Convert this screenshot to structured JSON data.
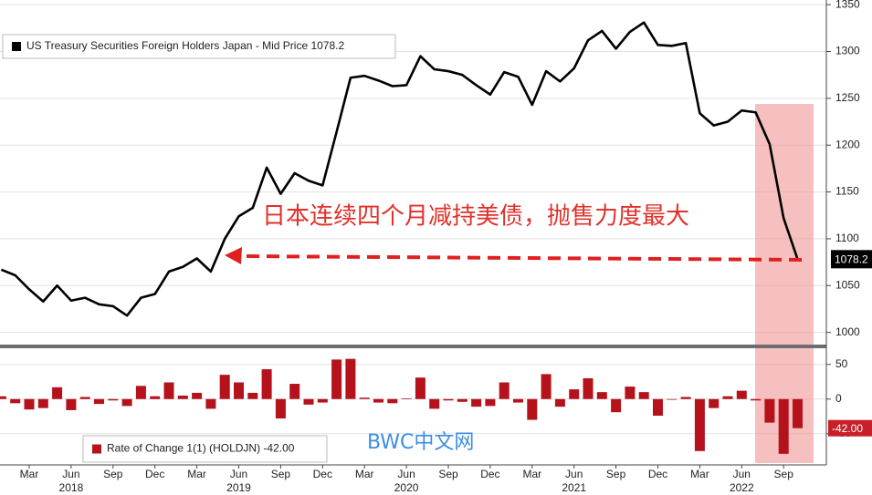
{
  "chart_data": [
    {
      "type": "line",
      "series": [
        {
          "name": "US Treasury Securities Foreign Holders Japan - Mid Price 1078.2",
          "color": "#000000",
          "values": [
            1067,
            1061,
            1046,
            1033,
            1050,
            1034,
            1037,
            1030,
            1028,
            1018,
            1037,
            1041,
            1065,
            1070,
            1079,
            1065,
            1100,
            1124,
            1133,
            1176,
            1148,
            1170,
            1162,
            1157,
            1214,
            1272,
            1274,
            1269,
            1263,
            1264,
            1295,
            1281,
            1279,
            1275,
            1264,
            1254,
            1278,
            1273,
            1243,
            1279,
            1268,
            1282,
            1312,
            1322,
            1303,
            1321,
            1331,
            1307,
            1306,
            1309,
            1234,
            1221,
            1225,
            1237,
            1235,
            1201,
            1122,
            1078.2
          ]
        }
      ],
      "ylim": [
        987,
        1355
      ],
      "yticks": [
        1000,
        1050,
        1100,
        1150,
        1200,
        1250,
        1300,
        1350
      ],
      "grid": true,
      "annotation": "日本连续四个月减持美债，抛售力度最大"
    },
    {
      "type": "bar",
      "categories": [
        null,
        null,
        "Mar",
        null,
        null,
        "Jun",
        null,
        null,
        "Sep",
        null,
        null,
        "Dec",
        null,
        null,
        "Mar",
        null,
        null,
        "Jun",
        null,
        null,
        "Sep",
        null,
        null,
        "Dec",
        null,
        null,
        "Mar",
        null,
        null,
        "Jun",
        null,
        null,
        "Sep",
        null,
        null,
        "Dec",
        null,
        null,
        "Mar",
        null,
        null,
        "Jun",
        null,
        null,
        "Sep",
        null,
        null,
        "Dec",
        null,
        null,
        "Mar",
        null,
        null,
        "Jun",
        null,
        null,
        "Sep",
        null
      ],
      "year_labels": [
        null,
        null,
        null,
        null,
        null,
        "2018",
        null,
        null,
        null,
        null,
        null,
        null,
        null,
        null,
        null,
        null,
        null,
        "2019",
        null,
        null,
        null,
        null,
        null,
        null,
        null,
        null,
        null,
        null,
        null,
        "2020",
        null,
        null,
        null,
        null,
        null,
        null,
        null,
        null,
        null,
        null,
        null,
        "2021",
        null,
        null,
        null,
        null,
        null,
        null,
        null,
        null,
        null,
        null,
        null,
        "2022",
        null,
        null,
        null,
        null
      ],
      "series": [
        {
          "name": "Rate of Change 1(1) (HOLDJN) -42.00",
          "color": "#b5121b",
          "values": [
            4,
            -6,
            -15,
            -13,
            17,
            -16,
            3,
            -7,
            -2,
            -10,
            19,
            4,
            24,
            5,
            9,
            -14,
            35,
            24,
            9,
            43,
            -28,
            22,
            -8,
            -5,
            57,
            58,
            2,
            -5,
            -6,
            1,
            31,
            -14,
            -2,
            -4,
            -11,
            -10,
            24,
            -5,
            -30,
            36,
            -11,
            14,
            30,
            10,
            -19,
            18,
            10,
            -24,
            -1,
            3,
            -75,
            -13,
            4,
            12,
            -2,
            -34,
            -79,
            -42
          ],
          "value_labels": [
            null,
            null,
            null,
            null,
            null,
            null,
            null,
            null,
            null,
            null,
            null,
            null,
            null,
            null,
            null,
            null,
            null,
            null,
            null,
            null,
            null,
            null,
            null,
            null,
            null,
            null,
            null,
            null,
            null,
            null,
            null,
            null,
            null,
            null,
            null,
            null,
            null,
            null,
            null,
            null,
            null,
            null,
            null,
            null,
            null,
            null,
            null,
            null,
            null,
            null,
            null,
            null,
            null,
            null,
            null,
            null,
            null,
            "-42.00"
          ]
        }
      ],
      "ylim": [
        -95,
        72
      ],
      "yticks": [
        -50,
        0,
        50
      ],
      "grid": true
    }
  ],
  "watermark": "BWC中文网"
}
